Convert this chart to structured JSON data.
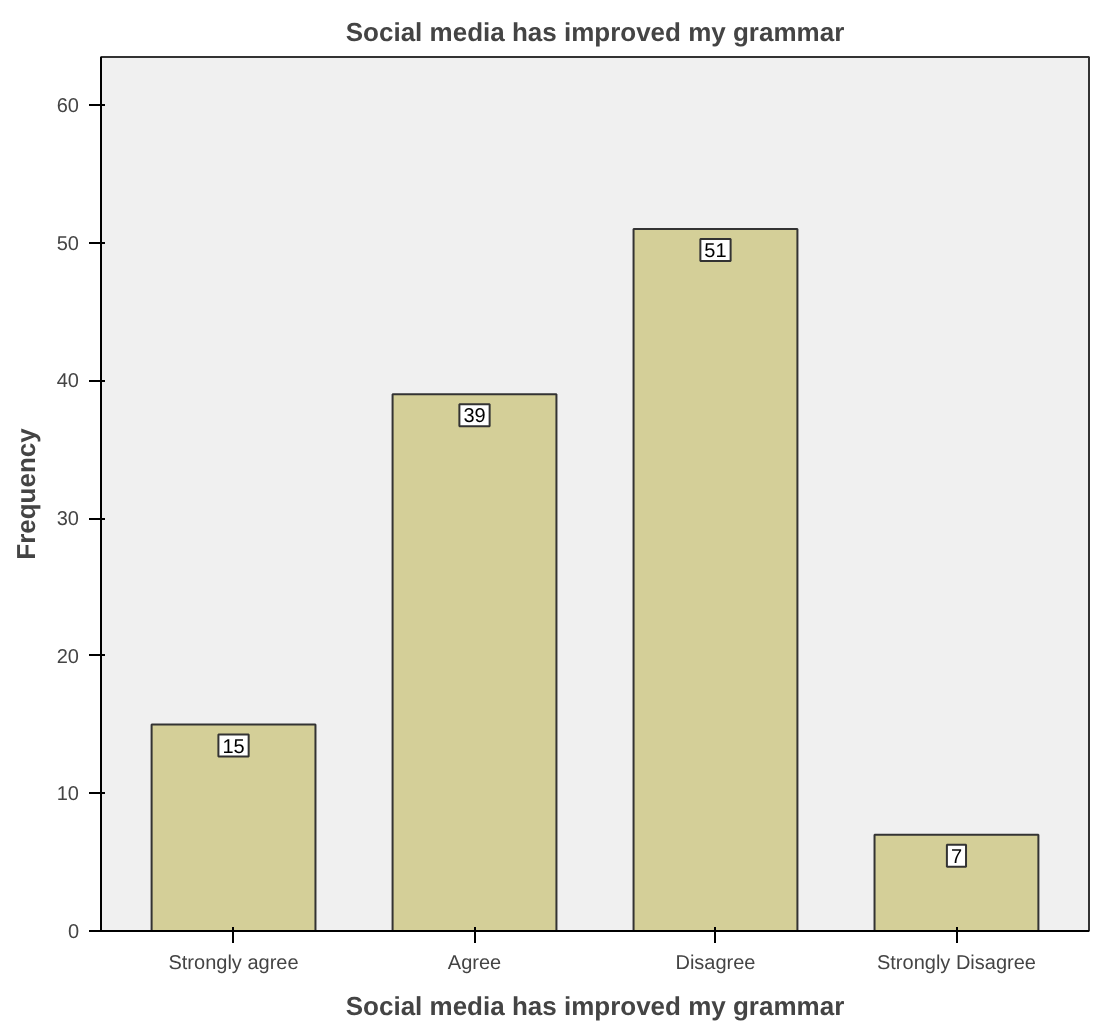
{
  "chart_data": {
    "type": "bar",
    "title": "Social media has improved my grammar",
    "xlabel": "Social media has improved my grammar",
    "ylabel": "Frequency",
    "categories": [
      "Strongly agree",
      "Agree",
      "Disagree",
      "Strongly Disagree"
    ],
    "values": [
      15,
      39,
      51,
      7
    ],
    "color": "#d4cf98",
    "data_labels": true,
    "ylim": [
      0,
      63.5
    ],
    "yticks": [
      0,
      10,
      20,
      30,
      40,
      50,
      60
    ],
    "grid": false
  }
}
